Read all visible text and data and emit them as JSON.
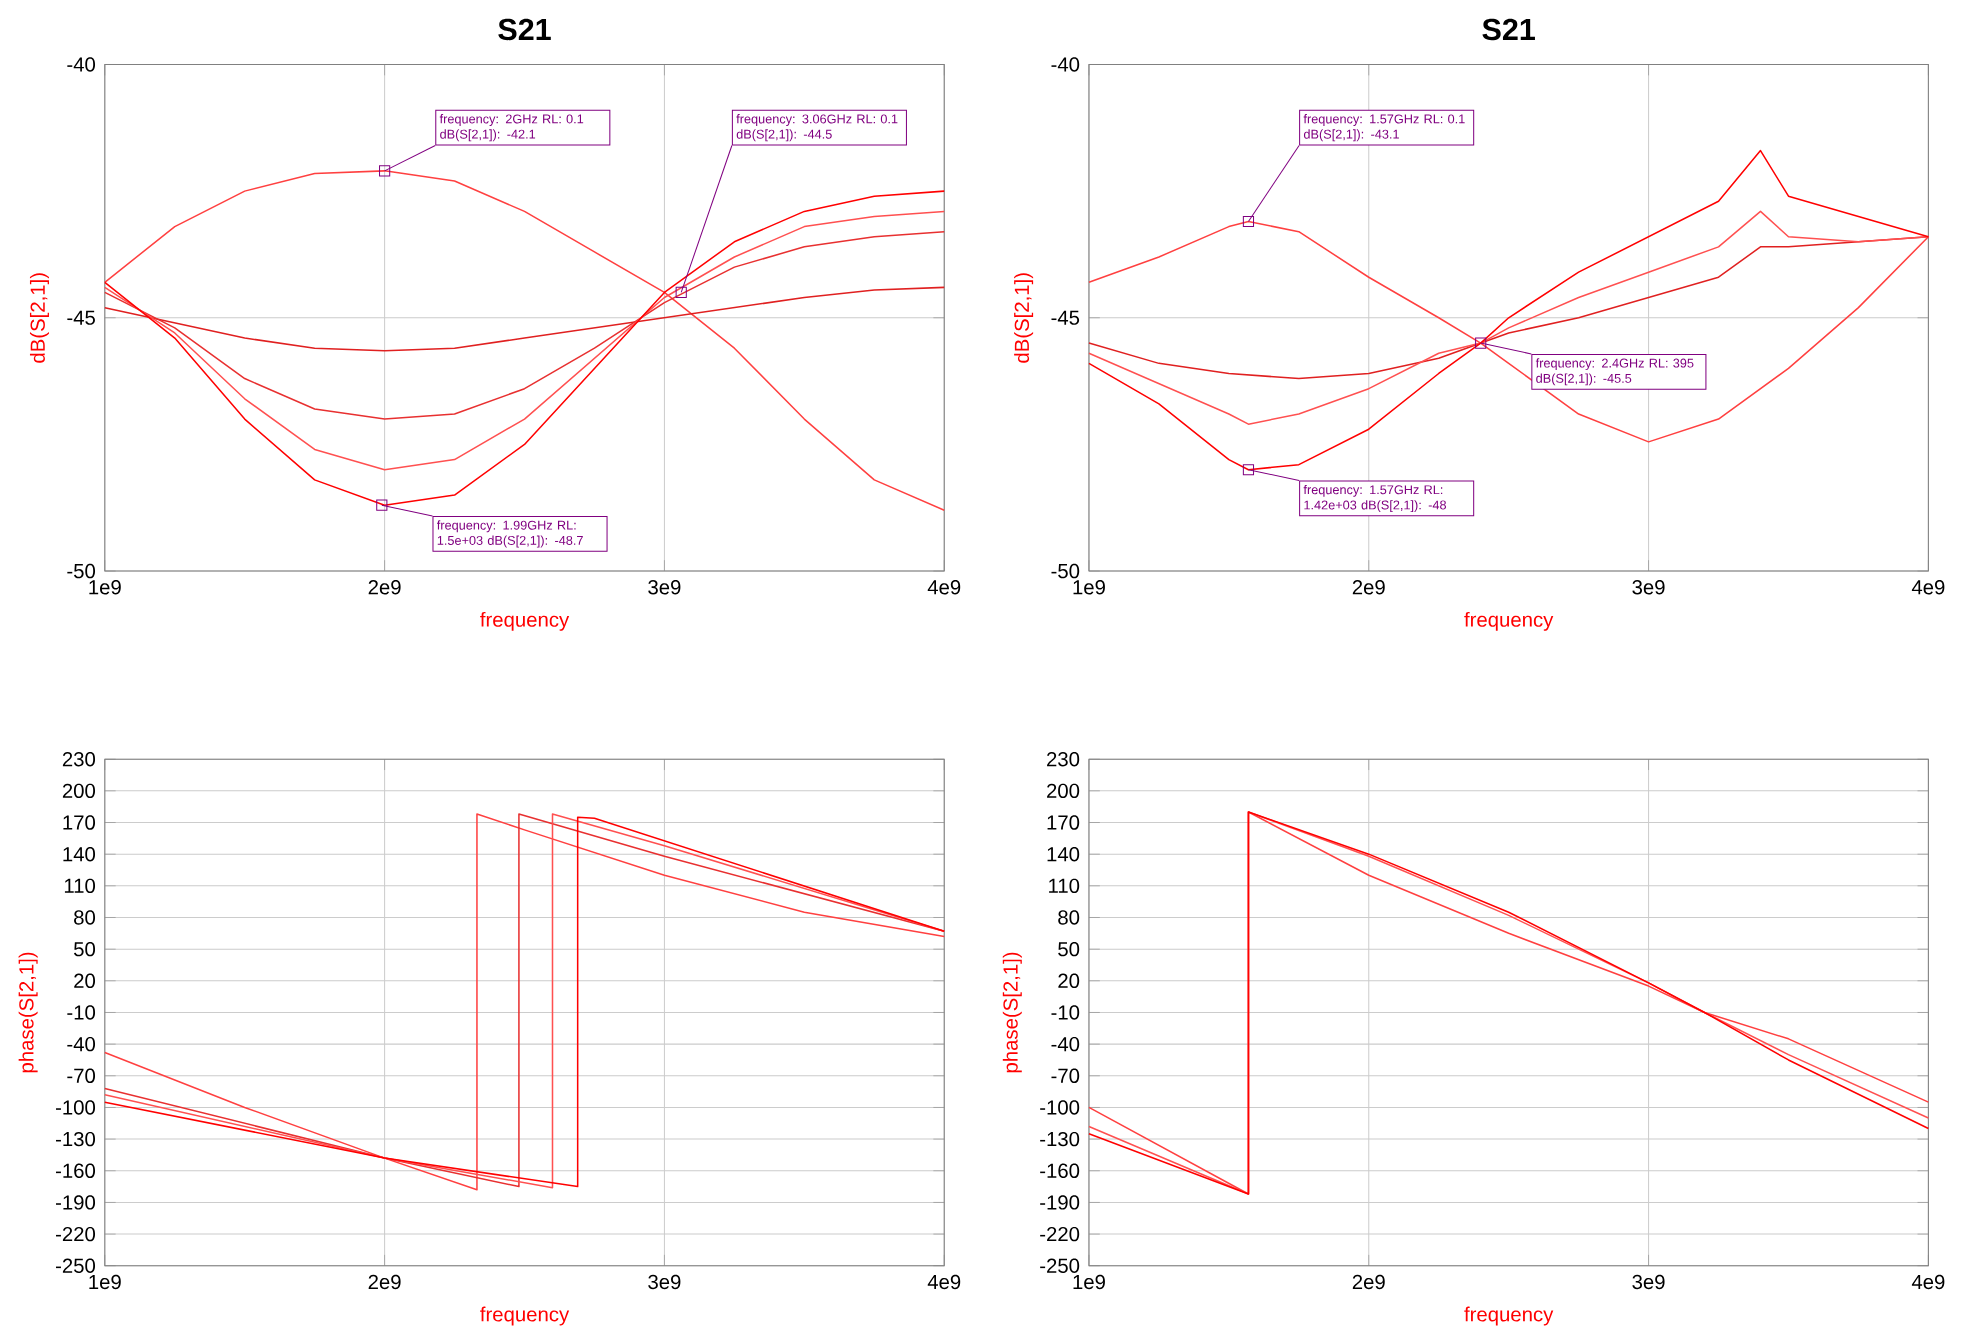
{
  "chart_data": [
    {
      "type": "line",
      "title": "S21",
      "xlabel": "frequency",
      "ylabel": "dB(S[2,1])",
      "xlim": [
        1000000000.0,
        4000000000.0
      ],
      "xticks": [
        {
          "value": 1000000000.0,
          "label": "1e9"
        },
        {
          "value": 2000000000.0,
          "label": "2e9"
        },
        {
          "value": 3000000000.0,
          "label": "3e9"
        },
        {
          "value": 4000000000.0,
          "label": "4e9"
        }
      ],
      "ylim": [
        -50,
        -40
      ],
      "yticks": [
        -50,
        -45,
        -40
      ],
      "grid": true,
      "series": [
        {
          "color": "#ff4040",
          "x": [
            1000000000.0,
            1250000000.0,
            1500000000.0,
            1750000000.0,
            2000000000.0,
            2250000000.0,
            2500000000.0,
            2750000000.0,
            3000000000.0,
            3250000000.0,
            3500000000.0,
            3750000000.0,
            4000000000.0
          ],
          "values": [
            -44.3,
            -43.2,
            -42.5,
            -42.15,
            -42.1,
            -42.3,
            -42.9,
            -43.7,
            -44.5,
            -45.6,
            -47.0,
            -48.2,
            -48.8
          ]
        },
        {
          "color": "#e02020",
          "x": [
            1000000000.0,
            1250000000.0,
            1500000000.0,
            1750000000.0,
            2000000000.0,
            2250000000.0,
            2500000000.0,
            2750000000.0,
            3000000000.0,
            3250000000.0,
            3500000000.0,
            3750000000.0,
            4000000000.0
          ],
          "values": [
            -44.8,
            -45.1,
            -45.4,
            -45.6,
            -45.65,
            -45.6,
            -45.4,
            -45.2,
            -45.0,
            -44.8,
            -44.6,
            -44.45,
            -44.4
          ]
        },
        {
          "color": "#e83030",
          "x": [
            1000000000.0,
            1250000000.0,
            1500000000.0,
            1750000000.0,
            2000000000.0,
            2250000000.0,
            2500000000.0,
            2750000000.0,
            3000000000.0,
            3250000000.0,
            3500000000.0,
            3750000000.0,
            4000000000.0
          ],
          "values": [
            -44.5,
            -45.2,
            -46.2,
            -46.8,
            -47.0,
            -46.9,
            -46.4,
            -45.6,
            -44.7,
            -44.0,
            -43.6,
            -43.4,
            -43.3
          ]
        },
        {
          "color": "#ff5050",
          "x": [
            1000000000.0,
            1250000000.0,
            1500000000.0,
            1750000000.0,
            2000000000.0,
            2250000000.0,
            2500000000.0,
            2750000000.0,
            3000000000.0,
            3250000000.0,
            3500000000.0,
            3750000000.0,
            4000000000.0
          ],
          "values": [
            -44.4,
            -45.3,
            -46.6,
            -47.6,
            -48.0,
            -47.8,
            -47.0,
            -45.8,
            -44.6,
            -43.8,
            -43.2,
            -43.0,
            -42.9
          ]
        },
        {
          "color": "#ff0000",
          "x": [
            1000000000.0,
            1250000000.0,
            1500000000.0,
            1750000000.0,
            2000000000.0,
            2250000000.0,
            2500000000.0,
            2750000000.0,
            3000000000.0,
            3250000000.0,
            3500000000.0,
            3750000000.0,
            4000000000.0
          ],
          "values": [
            -44.3,
            -45.4,
            -47.0,
            -48.2,
            -48.7,
            -48.5,
            -47.5,
            -46.0,
            -44.5,
            -43.5,
            -42.9,
            -42.6,
            -42.5
          ]
        }
      ],
      "annotations": [
        {
          "text": "frequency: 2GHz RL: 0.1 dB(S[2,1]): -42.1",
          "x": 2000000000.0,
          "y": -42.1
        },
        {
          "text": "frequency: 3.06GHz RL: 0.1 dB(S[2,1]): -44.5",
          "x": 3060000000.0,
          "y": -44.5
        },
        {
          "text": "frequency: 1.99GHz RL: 1.5e+03 dB(S[2,1]): -48.7",
          "x": 1990000000.0,
          "y": -48.7
        }
      ]
    },
    {
      "type": "line",
      "title": "S21",
      "xlabel": "frequency",
      "ylabel": "dB(S[2,1])",
      "xlim": [
        1000000000.0,
        4000000000.0
      ],
      "xticks": [
        {
          "value": 1000000000.0,
          "label": "1e9"
        },
        {
          "value": 2000000000.0,
          "label": "2e9"
        },
        {
          "value": 3000000000.0,
          "label": "3e9"
        },
        {
          "value": 4000000000.0,
          "label": "4e9"
        }
      ],
      "ylim": [
        -50,
        -40
      ],
      "yticks": [
        -50,
        -45,
        -40
      ],
      "grid": true,
      "series": [
        {
          "color": "#ff4040",
          "x": [
            1000000000.0,
            1250000000.0,
            1500000000.0,
            1570000000.0,
            1750000000.0,
            2000000000.0,
            2250000000.0,
            2400000000.0,
            2500000000.0,
            2750000000.0,
            3000000000.0,
            3250000000.0,
            3500000000.0,
            3750000000.0,
            4000000000.0
          ],
          "values": [
            -44.3,
            -43.8,
            -43.2,
            -43.1,
            -43.3,
            -44.2,
            -45.0,
            -45.5,
            -45.9,
            -46.9,
            -47.45,
            -47.0,
            -46.0,
            -44.8,
            -43.4
          ]
        },
        {
          "color": "#e02020",
          "x": [
            1000000000.0,
            1250000000.0,
            1500000000.0,
            1750000000.0,
            2000000000.0,
            2250000000.0,
            2400000000.0,
            2500000000.0,
            2750000000.0,
            3000000000.0,
            3250000000.0,
            3400000000.0,
            3500000000.0,
            3750000000.0,
            4000000000.0
          ],
          "values": [
            -45.5,
            -45.9,
            -46.1,
            -46.2,
            -46.1,
            -45.8,
            -45.5,
            -45.3,
            -45.0,
            -44.6,
            -44.2,
            -43.6,
            -43.6,
            -43.5,
            -43.4
          ]
        },
        {
          "color": "#ff5050",
          "x": [
            1000000000.0,
            1250000000.0,
            1500000000.0,
            1570000000.0,
            1750000000.0,
            2000000000.0,
            2250000000.0,
            2400000000.0,
            2500000000.0,
            2750000000.0,
            3000000000.0,
            3250000000.0,
            3400000000.0,
            3500000000.0,
            3750000000.0,
            4000000000.0
          ],
          "values": [
            -45.7,
            -46.3,
            -46.9,
            -47.1,
            -46.9,
            -46.4,
            -45.7,
            -45.5,
            -45.2,
            -44.6,
            -44.1,
            -43.6,
            -42.9,
            -43.4,
            -43.5,
            -43.4
          ]
        },
        {
          "color": "#ff0000",
          "x": [
            1000000000.0,
            1250000000.0,
            1500000000.0,
            1570000000.0,
            1750000000.0,
            2000000000.0,
            2250000000.0,
            2400000000.0,
            2500000000.0,
            2750000000.0,
            3000000000.0,
            3250000000.0,
            3400000000.0,
            3500000000.0,
            3750000000.0,
            4000000000.0
          ],
          "values": [
            -45.9,
            -46.7,
            -47.8,
            -48.0,
            -47.9,
            -47.2,
            -46.1,
            -45.5,
            -45.0,
            -44.1,
            -43.4,
            -42.7,
            -41.7,
            -42.6,
            -43.0,
            -43.4
          ]
        }
      ],
      "annotations": [
        {
          "text": "frequency: 1.57GHz RL: 0.1 dB(S[2,1]): -43.1",
          "x": 1570000000.0,
          "y": -43.1
        },
        {
          "text": "frequency: 2.4GHz RL: 395 dB(S[2,1]): -45.5",
          "x": 2400000000.0,
          "y": -45.5
        },
        {
          "text": "frequency: 1.57GHz RL: 1.42e+03 dB(S[2,1]): -48",
          "x": 1570000000.0,
          "y": -48
        }
      ]
    },
    {
      "type": "line",
      "xlabel": "frequency",
      "ylabel": "phase(S[2,1])",
      "xlim": [
        1000000000.0,
        4000000000.0
      ],
      "xticks": [
        {
          "value": 1000000000.0,
          "label": "1e9"
        },
        {
          "value": 2000000000.0,
          "label": "2e9"
        },
        {
          "value": 3000000000.0,
          "label": "3e9"
        },
        {
          "value": 4000000000.0,
          "label": "4e9"
        }
      ],
      "ylim": [
        -250,
        230
      ],
      "yticks": [
        -250,
        -220,
        -190,
        -160,
        -130,
        -100,
        -70,
        -40,
        -10,
        20,
        50,
        80,
        110,
        140,
        170,
        200,
        230
      ],
      "grid": true,
      "series": [
        {
          "color": "#ff4040",
          "x": [
            1000000000.0,
            1500000000.0,
            2000000000.0,
            2330000000.0,
            2330000000.0,
            2500000000.0,
            3000000000.0,
            3500000000.0,
            4000000000.0
          ],
          "values": [
            -48,
            -100,
            -148,
            -178,
            178,
            163,
            120,
            85,
            62
          ]
        },
        {
          "color": "#e83030",
          "x": [
            1000000000.0,
            2000000000.0,
            2480000000.0,
            2480000000.0,
            3000000000.0,
            4000000000.0
          ],
          "values": [
            -82,
            -148,
            -175,
            178,
            138,
            67
          ]
        },
        {
          "color": "#ff5050",
          "x": [
            1000000000.0,
            2000000000.0,
            2600000000.0,
            2600000000.0,
            3000000000.0,
            4000000000.0
          ],
          "values": [
            -88,
            -148,
            -176,
            178,
            148,
            67
          ]
        },
        {
          "color": "#ff0000",
          "x": [
            1000000000.0,
            2000000000.0,
            2690000000.0,
            2690000000.0,
            2750000000.0,
            4000000000.0
          ],
          "values": [
            -95,
            -148,
            -175,
            175,
            174,
            67
          ]
        }
      ]
    },
    {
      "type": "line",
      "xlabel": "frequency",
      "ylabel": "phase(S[2,1])",
      "xlim": [
        1000000000.0,
        4000000000.0
      ],
      "xticks": [
        {
          "value": 1000000000.0,
          "label": "1e9"
        },
        {
          "value": 2000000000.0,
          "label": "2e9"
        },
        {
          "value": 3000000000.0,
          "label": "3e9"
        },
        {
          "value": 4000000000.0,
          "label": "4e9"
        }
      ],
      "ylim": [
        -250,
        230
      ],
      "yticks": [
        -250,
        -220,
        -190,
        -160,
        -130,
        -100,
        -70,
        -40,
        -10,
        20,
        50,
        80,
        110,
        140,
        170,
        200,
        230
      ],
      "grid": true,
      "series": [
        {
          "color": "#ff4040",
          "x": [
            1000000000.0,
            1570000000.0,
            1570000000.0,
            2000000000.0,
            2500000000.0,
            3000000000.0,
            3200000000.0,
            3500000000.0,
            4000000000.0
          ],
          "values": [
            -100,
            -182,
            180,
            120,
            65,
            15,
            -10,
            -35,
            -95
          ]
        },
        {
          "color": "#ff5050",
          "x": [
            1000000000.0,
            1570000000.0,
            1570000000.0,
            2000000000.0,
            2500000000.0,
            3000000000.0,
            3200000000.0,
            3500000000.0,
            4000000000.0
          ],
          "values": [
            -118,
            -182,
            180,
            138,
            82,
            18,
            -10,
            -50,
            -110
          ]
        },
        {
          "color": "#ff0000",
          "x": [
            1000000000.0,
            1570000000.0,
            1570000000.0,
            2000000000.0,
            2500000000.0,
            3000000000.0,
            3200000000.0,
            3500000000.0,
            4000000000.0
          ],
          "values": [
            -125,
            -182,
            180,
            140,
            85,
            18,
            -10,
            -55,
            -120
          ]
        }
      ]
    }
  ]
}
